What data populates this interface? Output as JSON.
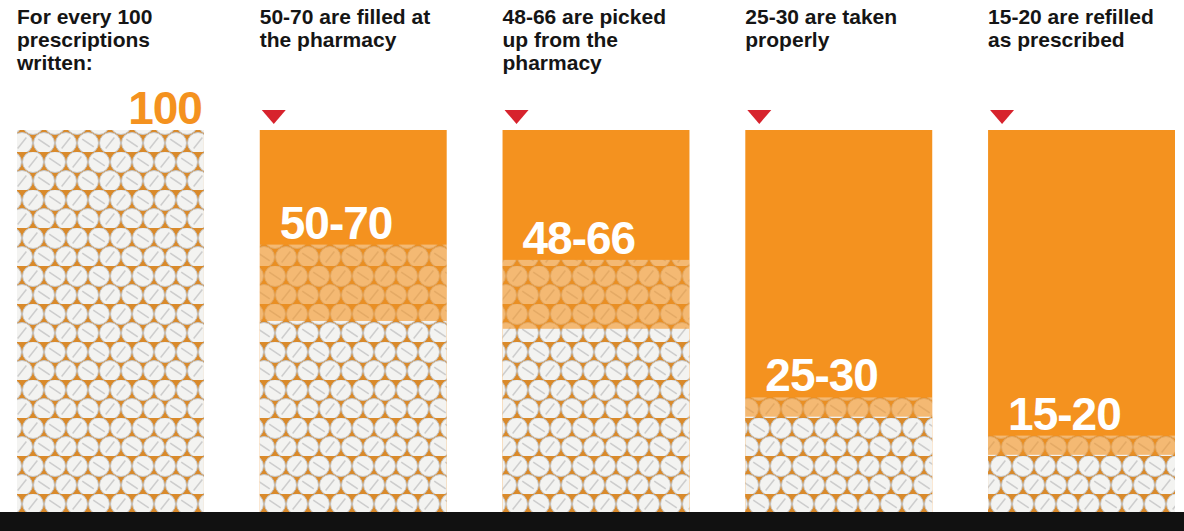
{
  "chart_data": {
    "type": "bar",
    "categories": [
      "For every 100 prescriptions written:",
      "50-70 are filled at the pharmacy",
      "48-66 are picked up from the pharmacy",
      "25-30 are taken properly",
      "15-20 are refilled as prescribed"
    ],
    "values": [
      100,
      50,
      48,
      25,
      15
    ],
    "high": [
      100,
      70,
      66,
      30,
      20
    ],
    "value_labels": [
      "100",
      "50-70",
      "48-66",
      "25-30",
      "15-20"
    ],
    "data_labels": true,
    "color": "#f4921f",
    "ylim": [
      0,
      100
    ],
    "tick_labels": false
  }
}
